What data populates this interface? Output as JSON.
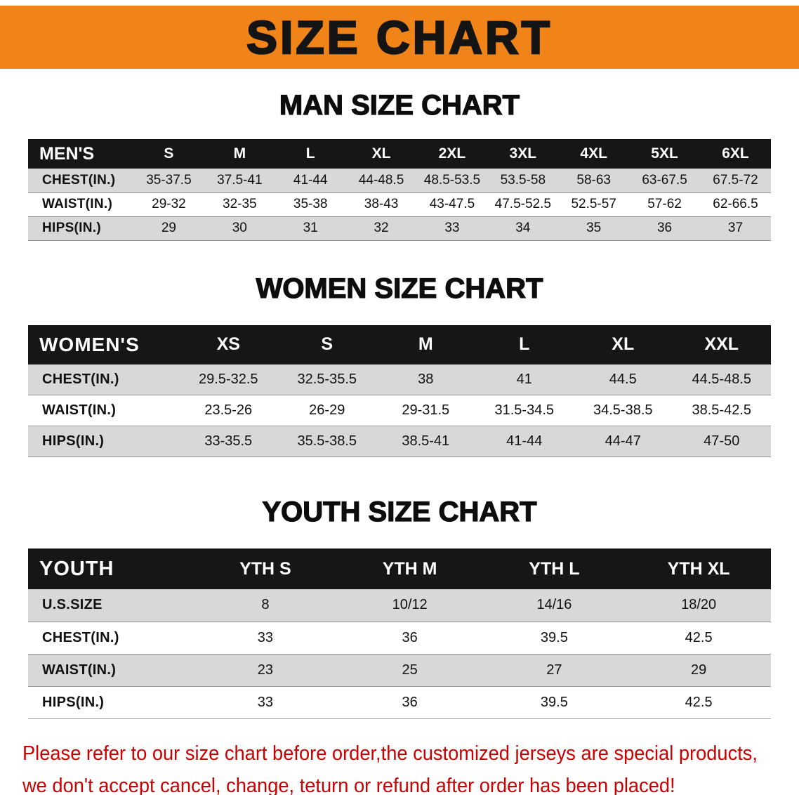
{
  "banner": {
    "title": "SIZE CHART"
  },
  "colors": {
    "banner_bg": "#F08418",
    "header_bg": "#161616",
    "row_alt": "#D8D8D8",
    "disclaimer_red": "#CC0000"
  },
  "sections": [
    {
      "id": "men",
      "heading": "MAN SIZE CHART",
      "table": {
        "header": [
          "MEN'S",
          "S",
          "M",
          "L",
          "XL",
          "2XL",
          "3XL",
          "4XL",
          "5XL",
          "6XL"
        ],
        "rows": [
          {
            "label": "CHEST(IN.)",
            "values": [
              "35-37.5",
              "37.5-41",
              "41-44",
              "44-48.5",
              "48.5-53.5",
              "53.5-58",
              "58-63",
              "63-67.5",
              "67.5-72"
            ]
          },
          {
            "label": "WAIST(IN.)",
            "values": [
              "29-32",
              "32-35",
              "35-38",
              "38-43",
              "43-47.5",
              "47.5-52.5",
              "52.5-57",
              "57-62",
              "62-66.5"
            ]
          },
          {
            "label": "HIPS(IN.)",
            "values": [
              "29",
              "30",
              "31",
              "32",
              "33",
              "34",
              "35",
              "36",
              "37"
            ]
          }
        ]
      }
    },
    {
      "id": "women",
      "heading": "WOMEN SIZE CHART",
      "table": {
        "header": [
          "WOMEN'S",
          "XS",
          "S",
          "M",
          "L",
          "XL",
          "XXL"
        ],
        "rows": [
          {
            "label": "CHEST(IN.)",
            "values": [
              "29.5-32.5",
              "32.5-35.5",
              "38",
              "41",
              "44.5",
              "44.5-48.5"
            ]
          },
          {
            "label": "WAIST(IN.)",
            "values": [
              "23.5-26",
              "26-29",
              "29-31.5",
              "31.5-34.5",
              "34.5-38.5",
              "38.5-42.5"
            ]
          },
          {
            "label": "HIPS(IN.)",
            "values": [
              "33-35.5",
              "35.5-38.5",
              "38.5-41",
              "41-44",
              "44-47",
              "47-50"
            ]
          }
        ]
      }
    },
    {
      "id": "youth",
      "heading": "YOUTH SIZE CHART",
      "table": {
        "header": [
          "YOUTH",
          "YTH S",
          "YTH M",
          "YTH L",
          "YTH XL"
        ],
        "rows": [
          {
            "label": "U.S.SIZE",
            "values": [
              "8",
              "10/12",
              "14/16",
              "18/20"
            ]
          },
          {
            "label": "CHEST(IN.)",
            "values": [
              "33",
              "36",
              "39.5",
              "42.5"
            ]
          },
          {
            "label": "WAIST(IN.)",
            "values": [
              "23",
              "25",
              "27",
              "29"
            ]
          },
          {
            "label": "HIPS(IN.)",
            "values": [
              "33",
              "36",
              "39.5",
              "42.5"
            ]
          }
        ]
      }
    }
  ],
  "disclaimer": {
    "line1": "Please refer to our size chart before order,the customized jerseys are special products,",
    "line2": "we don't accept cancel, change, teturn or refund after order has been placed!"
  }
}
